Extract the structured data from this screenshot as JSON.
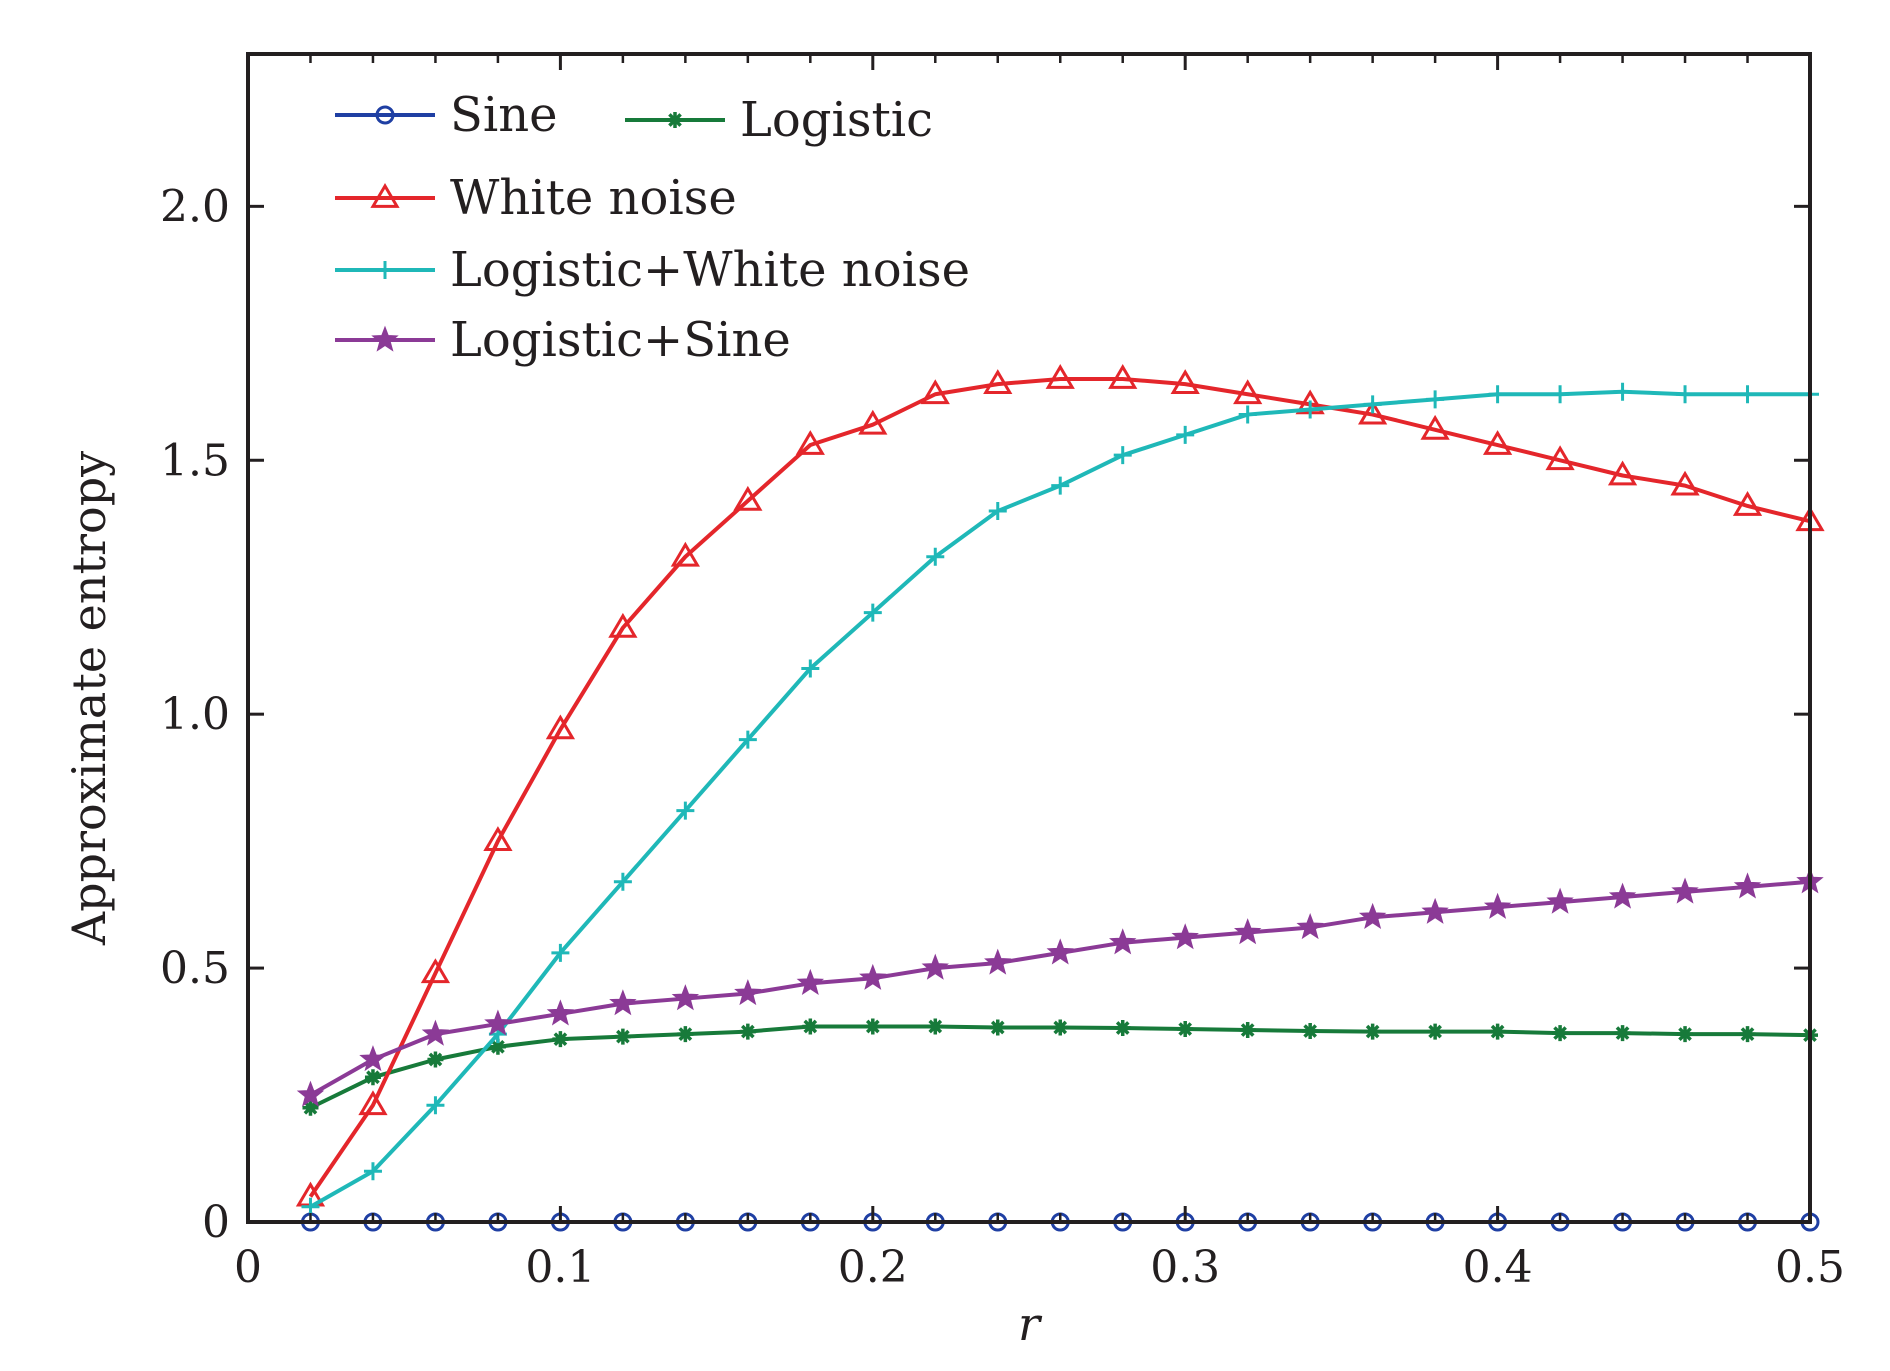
{
  "chart_data": {
    "type": "line",
    "title": "",
    "xlabel": "r",
    "ylabel": "Approximate entropy",
    "xlim": [
      0,
      0.5
    ],
    "ylim": [
      0,
      2.3
    ],
    "xticks": [
      0,
      0.1,
      0.2,
      0.3,
      0.4,
      0.5
    ],
    "xtick_labels": [
      "0",
      "0.1",
      "0.2",
      "0.3",
      "0.4",
      "0.5"
    ],
    "yticks": [
      0,
      0.5,
      1.0,
      1.5,
      2.0
    ],
    "ytick_labels": [
      "0",
      "0.5",
      "1.0",
      "1.5",
      "2.0"
    ],
    "grid": false,
    "legend_position": "top-left",
    "x": [
      0.02,
      0.04,
      0.06,
      0.08,
      0.1,
      0.12,
      0.14,
      0.16,
      0.18,
      0.2,
      0.22,
      0.24,
      0.26,
      0.28,
      0.3,
      0.32,
      0.34,
      0.36,
      0.38,
      0.4,
      0.42,
      0.44,
      0.46,
      0.48,
      0.5
    ],
    "series": [
      {
        "name": "Sine",
        "color": "#1f3fa3",
        "marker": "circle",
        "values": [
          0,
          0,
          0,
          0,
          0,
          0,
          0,
          0,
          0,
          0,
          0,
          0,
          0,
          0,
          0,
          0,
          0,
          0,
          0,
          0,
          0,
          0,
          0,
          0,
          0
        ]
      },
      {
        "name": "Logistic",
        "color": "#177a3a",
        "marker": "asterisk",
        "values": [
          0.225,
          0.285,
          0.32,
          0.345,
          0.36,
          0.365,
          0.37,
          0.375,
          0.385,
          0.385,
          0.385,
          0.383,
          0.383,
          0.382,
          0.38,
          0.378,
          0.376,
          0.375,
          0.375,
          0.375,
          0.372,
          0.372,
          0.37,
          0.37,
          0.368
        ]
      },
      {
        "name": "White noise",
        "color": "#e4262b",
        "marker": "triangle",
        "values": [
          0.05,
          0.23,
          0.49,
          0.75,
          0.97,
          1.17,
          1.31,
          1.42,
          1.53,
          1.57,
          1.63,
          1.65,
          1.66,
          1.66,
          1.65,
          1.63,
          1.61,
          1.59,
          1.56,
          1.53,
          1.5,
          1.47,
          1.45,
          1.41,
          1.38
        ]
      },
      {
        "name": "Logistic+White noise",
        "color": "#1fb8b8",
        "marker": "plus",
        "values": [
          0.03,
          0.1,
          0.23,
          0.37,
          0.53,
          0.67,
          0.81,
          0.95,
          1.09,
          1.2,
          1.31,
          1.4,
          1.45,
          1.51,
          1.55,
          1.59,
          1.6,
          1.61,
          1.62,
          1.63,
          1.63,
          1.635,
          1.63,
          1.63,
          1.63
        ]
      },
      {
        "name": "Logistic+Sine",
        "color": "#8b3a96",
        "marker": "star",
        "values": [
          0.25,
          0.32,
          0.37,
          0.39,
          0.41,
          0.43,
          0.44,
          0.45,
          0.47,
          0.48,
          0.5,
          0.51,
          0.53,
          0.55,
          0.56,
          0.57,
          0.58,
          0.6,
          0.61,
          0.62,
          0.63,
          0.64,
          0.65,
          0.66,
          0.67
        ]
      }
    ]
  }
}
